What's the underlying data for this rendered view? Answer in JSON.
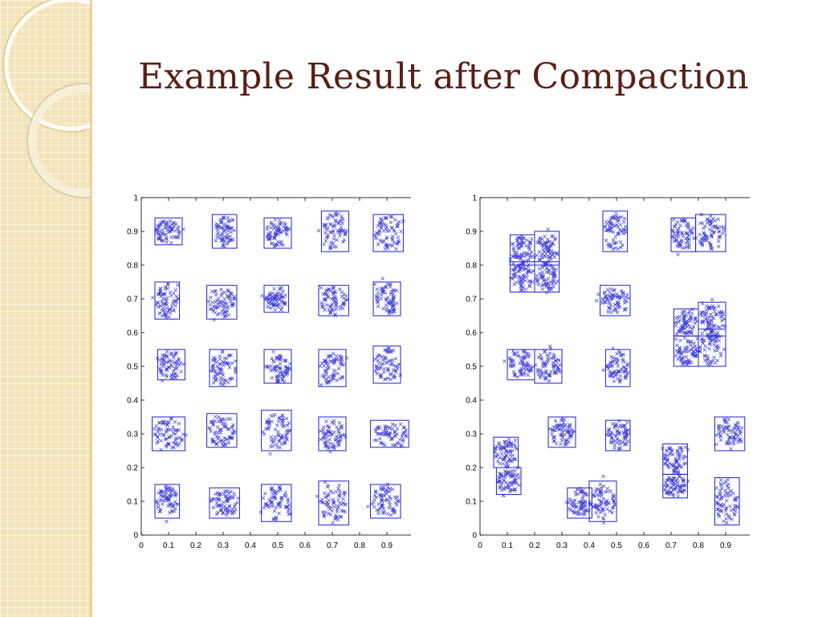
{
  "slide": {
    "title": "Example Result after Compaction",
    "colors": {
      "title": "#5a1f16",
      "marks": "#1f1fd0",
      "sidebar": "#f3e3b8"
    }
  },
  "chart_data": [
    {
      "type": "scatter",
      "marker": "x",
      "xlim": [
        0,
        1
      ],
      "ylim": [
        0,
        1
      ],
      "xticks": [
        "0",
        "0.1",
        "0.2",
        "0.3",
        "0.4",
        "0.5",
        "0.6",
        "0.7",
        "0.8",
        "0.9",
        "1"
      ],
      "yticks": [
        "0",
        "0.1",
        "0.2",
        "0.3",
        "0.4",
        "0.5",
        "0.6",
        "0.7",
        "0.8",
        "0.9",
        "1"
      ],
      "grid": false,
      "clusters": [
        {
          "x": [
            0.05,
            0.15
          ],
          "y": [
            0.86,
            0.94
          ]
        },
        {
          "x": [
            0.26,
            0.35
          ],
          "y": [
            0.85,
            0.95
          ]
        },
        {
          "x": [
            0.45,
            0.55
          ],
          "y": [
            0.85,
            0.94
          ]
        },
        {
          "x": [
            0.66,
            0.76
          ],
          "y": [
            0.84,
            0.96
          ]
        },
        {
          "x": [
            0.85,
            0.96
          ],
          "y": [
            0.84,
            0.95
          ]
        },
        {
          "x": [
            0.05,
            0.14
          ],
          "y": [
            0.64,
            0.75
          ]
        },
        {
          "x": [
            0.24,
            0.35
          ],
          "y": [
            0.64,
            0.74
          ]
        },
        {
          "x": [
            0.45,
            0.54
          ],
          "y": [
            0.66,
            0.74
          ]
        },
        {
          "x": [
            0.65,
            0.76
          ],
          "y": [
            0.65,
            0.74
          ]
        },
        {
          "x": [
            0.85,
            0.95
          ],
          "y": [
            0.65,
            0.75
          ]
        },
        {
          "x": [
            0.06,
            0.16
          ],
          "y": [
            0.46,
            0.55
          ]
        },
        {
          "x": [
            0.25,
            0.35
          ],
          "y": [
            0.44,
            0.55
          ]
        },
        {
          "x": [
            0.45,
            0.55
          ],
          "y": [
            0.45,
            0.55
          ]
        },
        {
          "x": [
            0.65,
            0.75
          ],
          "y": [
            0.44,
            0.55
          ]
        },
        {
          "x": [
            0.85,
            0.95
          ],
          "y": [
            0.45,
            0.56
          ]
        },
        {
          "x": [
            0.04,
            0.16
          ],
          "y": [
            0.25,
            0.35
          ]
        },
        {
          "x": [
            0.24,
            0.35
          ],
          "y": [
            0.26,
            0.36
          ]
        },
        {
          "x": [
            0.44,
            0.55
          ],
          "y": [
            0.25,
            0.37
          ]
        },
        {
          "x": [
            0.65,
            0.75
          ],
          "y": [
            0.25,
            0.35
          ]
        },
        {
          "x": [
            0.84,
            0.98
          ],
          "y": [
            0.26,
            0.34
          ]
        },
        {
          "x": [
            0.05,
            0.14
          ],
          "y": [
            0.05,
            0.15
          ]
        },
        {
          "x": [
            0.25,
            0.36
          ],
          "y": [
            0.05,
            0.14
          ]
        },
        {
          "x": [
            0.44,
            0.55
          ],
          "y": [
            0.04,
            0.15
          ]
        },
        {
          "x": [
            0.65,
            0.76
          ],
          "y": [
            0.03,
            0.16
          ]
        },
        {
          "x": [
            0.84,
            0.95
          ],
          "y": [
            0.05,
            0.15
          ]
        }
      ]
    },
    {
      "type": "scatter",
      "marker": "x",
      "xlim": [
        0,
        1
      ],
      "ylim": [
        0,
        1
      ],
      "xticks": [
        "0",
        "0.1",
        "0.2",
        "0.3",
        "0.4",
        "0.5",
        "0.6",
        "0.7",
        "0.8",
        "0.9",
        "1"
      ],
      "yticks": [
        "0",
        "0.1",
        "0.2",
        "0.3",
        "0.4",
        "0.5",
        "0.6",
        "0.7",
        "0.8",
        "0.9",
        "1"
      ],
      "grid": false,
      "clusters": [
        {
          "x": [
            0.11,
            0.2
          ],
          "y": [
            0.8,
            0.89
          ]
        },
        {
          "x": [
            0.2,
            0.29
          ],
          "y": [
            0.8,
            0.9
          ]
        },
        {
          "x": [
            0.11,
            0.2
          ],
          "y": [
            0.72,
            0.81
          ]
        },
        {
          "x": [
            0.2,
            0.29
          ],
          "y": [
            0.72,
            0.81
          ]
        },
        {
          "x": [
            0.45,
            0.54
          ],
          "y": [
            0.84,
            0.96
          ]
        },
        {
          "x": [
            0.7,
            0.79
          ],
          "y": [
            0.84,
            0.94
          ]
        },
        {
          "x": [
            0.79,
            0.9
          ],
          "y": [
            0.84,
            0.95
          ]
        },
        {
          "x": [
            0.44,
            0.55
          ],
          "y": [
            0.65,
            0.74
          ]
        },
        {
          "x": [
            0.71,
            0.8
          ],
          "y": [
            0.59,
            0.67
          ]
        },
        {
          "x": [
            0.8,
            0.9
          ],
          "y": [
            0.59,
            0.69
          ]
        },
        {
          "x": [
            0.71,
            0.8
          ],
          "y": [
            0.5,
            0.59
          ]
        },
        {
          "x": [
            0.8,
            0.9
          ],
          "y": [
            0.5,
            0.61
          ]
        },
        {
          "x": [
            0.1,
            0.2
          ],
          "y": [
            0.46,
            0.55
          ]
        },
        {
          "x": [
            0.2,
            0.3
          ],
          "y": [
            0.45,
            0.55
          ]
        },
        {
          "x": [
            0.46,
            0.55
          ],
          "y": [
            0.44,
            0.55
          ]
        },
        {
          "x": [
            0.05,
            0.14
          ],
          "y": [
            0.2,
            0.29
          ]
        },
        {
          "x": [
            0.06,
            0.15
          ],
          "y": [
            0.12,
            0.2
          ]
        },
        {
          "x": [
            0.25,
            0.35
          ],
          "y": [
            0.26,
            0.35
          ]
        },
        {
          "x": [
            0.46,
            0.55
          ],
          "y": [
            0.25,
            0.34
          ]
        },
        {
          "x": [
            0.67,
            0.76
          ],
          "y": [
            0.18,
            0.27
          ]
        },
        {
          "x": [
            0.67,
            0.76
          ],
          "y": [
            0.11,
            0.18
          ]
        },
        {
          "x": [
            0.86,
            0.97
          ],
          "y": [
            0.25,
            0.35
          ]
        },
        {
          "x": [
            0.32,
            0.41
          ],
          "y": [
            0.05,
            0.14
          ]
        },
        {
          "x": [
            0.4,
            0.5
          ],
          "y": [
            0.04,
            0.16
          ]
        },
        {
          "x": [
            0.86,
            0.95
          ],
          "y": [
            0.03,
            0.17
          ]
        }
      ]
    }
  ]
}
